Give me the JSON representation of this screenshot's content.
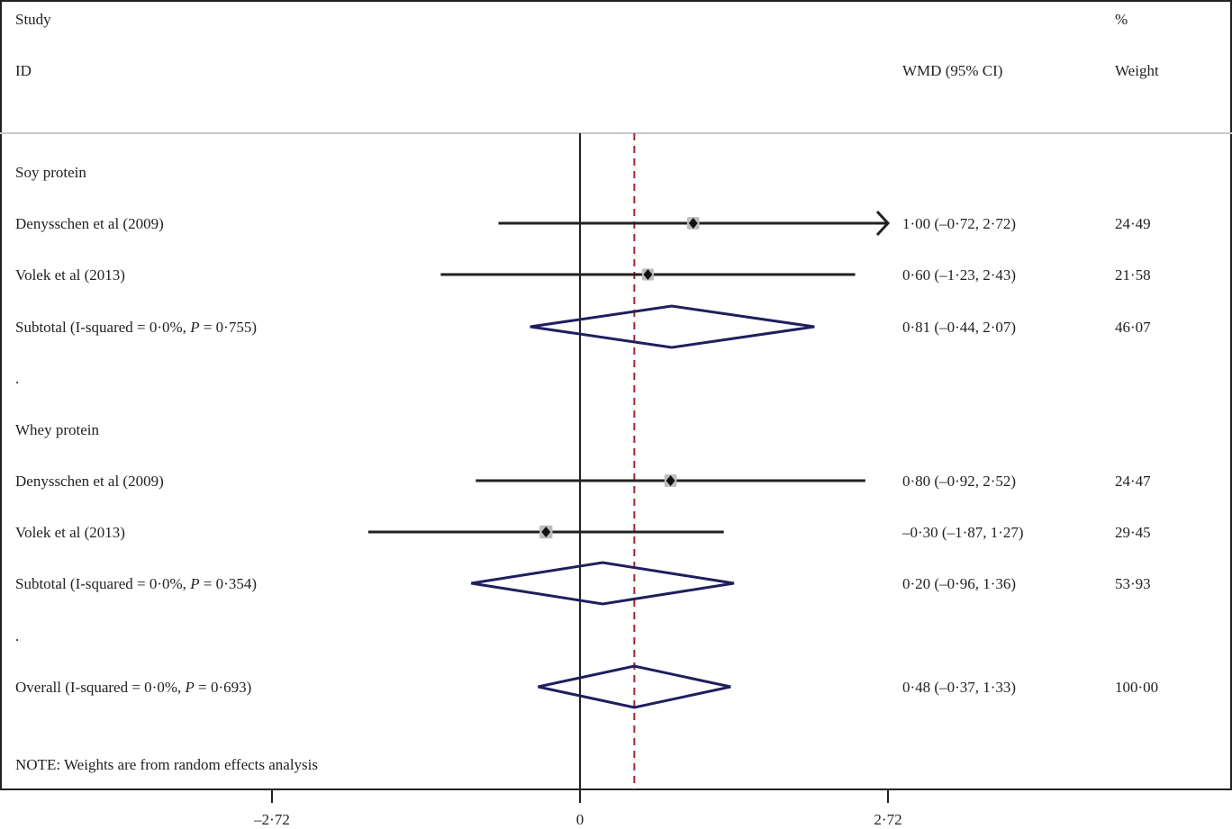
{
  "chart_data": {
    "type": "forest",
    "headers": {
      "study_line1": "Study",
      "study_line2": "ID",
      "effect": "WMD (95% CI)",
      "weight_line1": "%",
      "weight_line2": "Weight"
    },
    "xaxis": {
      "ticks": [
        -2.72,
        0,
        2.72
      ],
      "tick_labels": [
        "–2·72",
        "0",
        "2·72"
      ],
      "range": [
        -2.72,
        2.72
      ],
      "null_line": 0
    },
    "overall_line": 0.48,
    "colors": {
      "study_line": "#222222",
      "weight_box": "#bdbdbd",
      "diamond": "#1f1f5e",
      "overall_line": "#a0272d",
      "separator": "#c8c8c8"
    },
    "rows": [
      {
        "kind": "group",
        "label": "Soy protein"
      },
      {
        "kind": "study",
        "label": "Denysschen et al (2009)",
        "est": 1.0,
        "lo": -0.72,
        "hi": 2.72,
        "text": "1·00 (–0·72, 2·72)",
        "weight": 24.49,
        "weight_text": "24·49",
        "arrow_right": true
      },
      {
        "kind": "study",
        "label": "Volek et al (2013)",
        "est": 0.6,
        "lo": -1.23,
        "hi": 2.43,
        "text": "0·60 (–1·23, 2·43)",
        "weight": 21.58,
        "weight_text": "21·58"
      },
      {
        "kind": "subtotal",
        "label": "Subtotal  (I-squared = 0·0%, ",
        "p_label": "P",
        "p_text": " = 0·755)",
        "est": 0.81,
        "lo": -0.44,
        "hi": 2.07,
        "text": "0·81 (–0·44, 2·07)",
        "weight": 46.07,
        "weight_text": "46·07"
      },
      {
        "kind": "spacer",
        "label": "."
      },
      {
        "kind": "group",
        "label": "Whey protein"
      },
      {
        "kind": "study",
        "label": "Denysschen et al (2009)",
        "est": 0.8,
        "lo": -0.92,
        "hi": 2.52,
        "text": "0·80 (–0·92, 2·52)",
        "weight": 24.47,
        "weight_text": "24·47"
      },
      {
        "kind": "study",
        "label": "Volek et al (2013)",
        "est": -0.3,
        "lo": -1.87,
        "hi": 1.27,
        "text": "–0·30 (–1·87, 1·27)",
        "weight": 29.45,
        "weight_text": "29·45"
      },
      {
        "kind": "subtotal",
        "label": "Subtotal  (I-squared = 0·0%, ",
        "p_label": "P",
        "p_text": " = 0·354)",
        "est": 0.2,
        "lo": -0.96,
        "hi": 1.36,
        "text": "0·20 (–0·96, 1·36)",
        "weight": 53.93,
        "weight_text": "53·93"
      },
      {
        "kind": "spacer",
        "label": "."
      },
      {
        "kind": "overall",
        "label": "Overall  (I-squared = 0·0%, ",
        "p_label": "P",
        "p_text": " = 0·693)",
        "est": 0.48,
        "lo": -0.37,
        "hi": 1.33,
        "text": "0·48 (–0·37, 1·33)",
        "weight": 100.0,
        "weight_text": "100·00"
      }
    ],
    "note": "NOTE: Weights are from random effects analysis"
  }
}
